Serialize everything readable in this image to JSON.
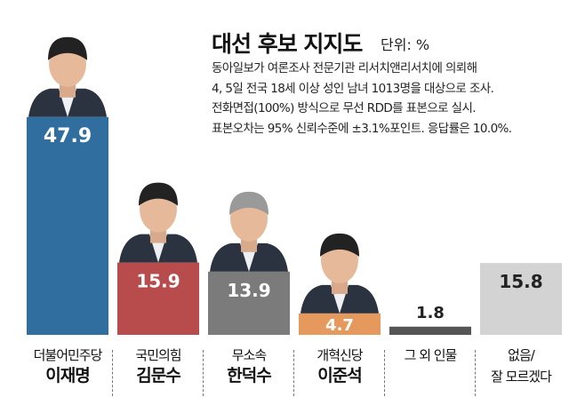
{
  "header": {
    "title": "대선 후보 지지도",
    "unit": "단위: %",
    "notes": [
      "동아일보가 여론조사 전문기관 리서치앤리서치에 의뢰해",
      "4, 5일 전국 18세 이상 성인 남녀 1013명을 대상으로 조사.",
      "전화면접(100%) 방식으로 무선 RDD를 표본으로 실시.",
      "표본오차는 95% 신뢰수준에 ±3.1%포인트. 응답률은 10.0%."
    ]
  },
  "chart_data": {
    "type": "bar",
    "title": "대선 후보 지지도",
    "unit": "%",
    "categories": [
      {
        "party": "더불어민주당",
        "name": "이재명"
      },
      {
        "party": "국민의힘",
        "name": "김문수"
      },
      {
        "party": "무소속",
        "name": "한덕수"
      },
      {
        "party": "개혁신당",
        "name": "이준석"
      },
      {
        "party": "그 외 인물",
        "name": ""
      },
      {
        "party": "없음/",
        "name": "잘 모르겠다"
      }
    ],
    "values": [
      47.9,
      15.9,
      13.9,
      4.7,
      1.8,
      15.8
    ],
    "value_labels": [
      "47.9",
      "15.9",
      "13.9",
      "4.7",
      "1.8",
      "15.8"
    ],
    "colors": [
      "#2f6e9f",
      "#b84b4b",
      "#7b7b7b",
      "#e6995c",
      "#555555",
      "#d3d3d3"
    ],
    "photos": [
      true,
      true,
      true,
      true,
      false,
      false
    ],
    "ylim": [
      0,
      50
    ],
    "grid": false
  }
}
